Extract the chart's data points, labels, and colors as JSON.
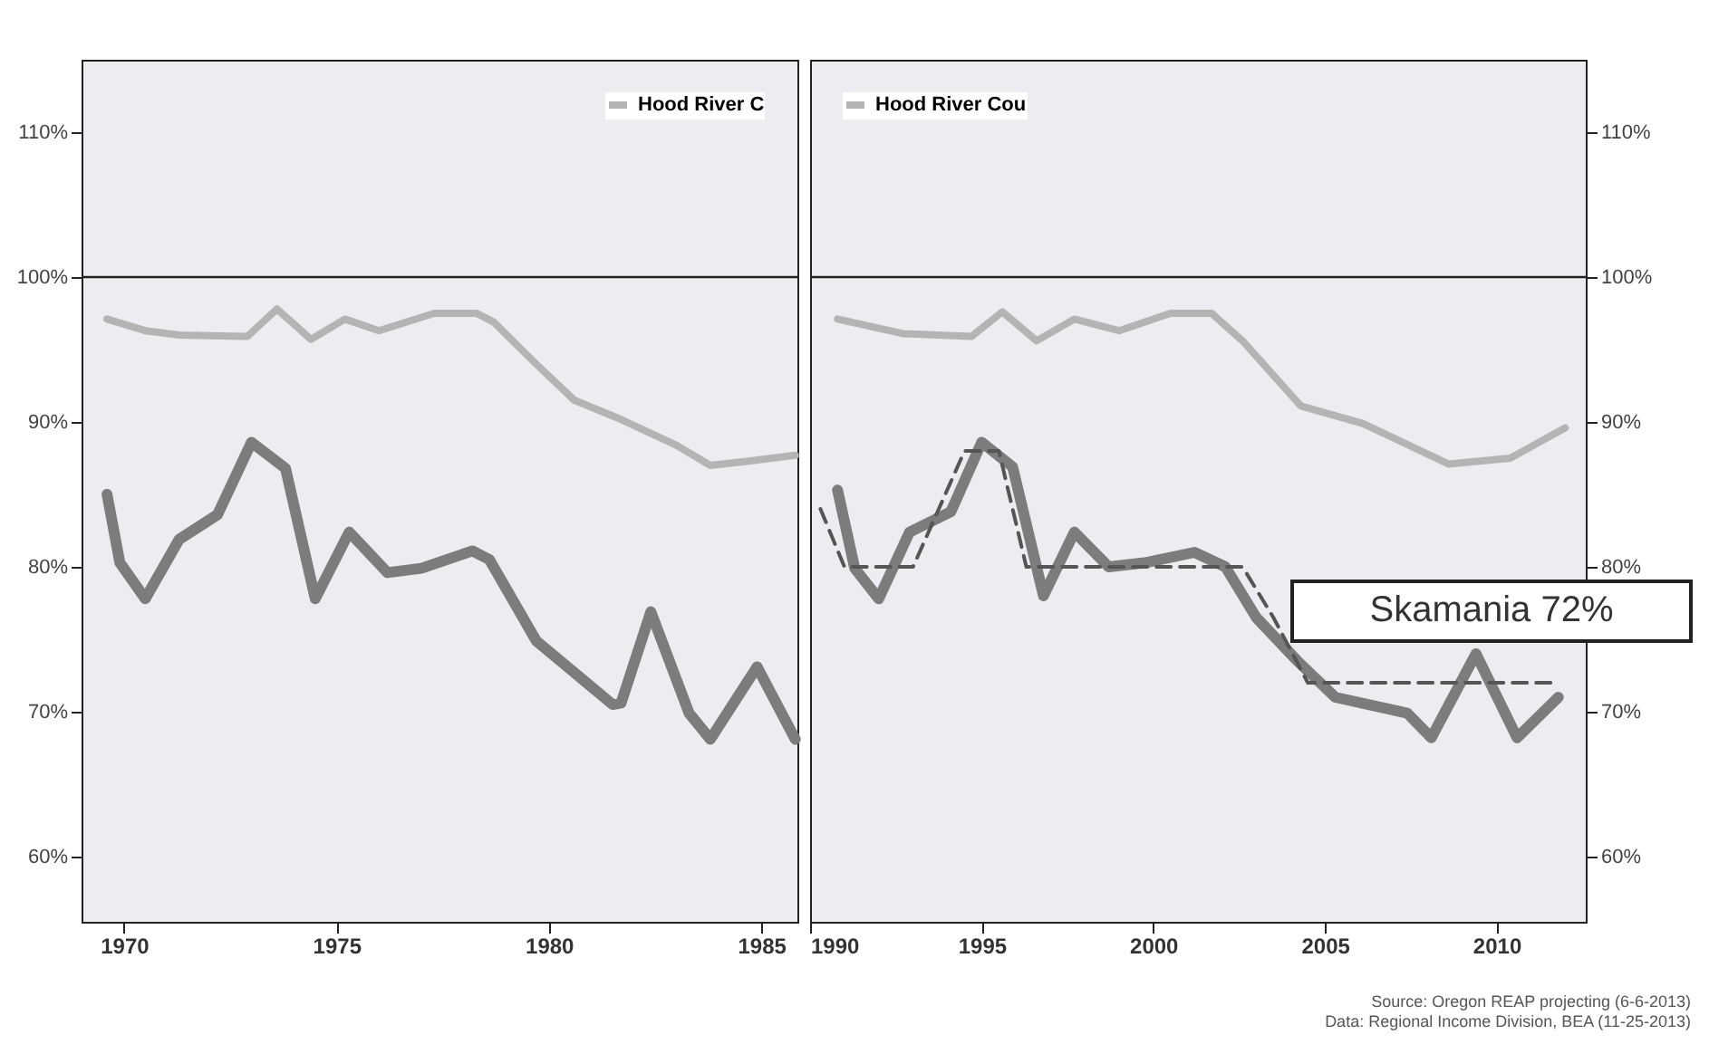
{
  "chart_data": [
    {
      "type": "line",
      "xlim": [
        1969,
        1985.85
      ],
      "xticks": [
        1970,
        1975,
        1980,
        1985
      ],
      "ylim": [
        55.5,
        115
      ],
      "yticks": [
        {
          "value": 60,
          "label": "60%"
        },
        {
          "value": 70,
          "label": "70%"
        },
        {
          "value": 80,
          "label": "80%"
        },
        {
          "value": 90,
          "label": "90%"
        },
        {
          "value": 100,
          "label": "100%"
        },
        {
          "value": 110,
          "label": "110%"
        }
      ],
      "legend": "top right",
      "ref_lines": [
        {
          "axis": "y",
          "value": 100
        }
      ],
      "series": [
        {
          "name": "Hood River C",
          "color": "#b4b4b4",
          "x": [
            1969.6,
            1970.5,
            1971.3,
            1972.9,
            1973.6,
            1974.4,
            1975.2,
            1976.0,
            1977.3,
            1978.3,
            1978.7,
            1979.7,
            1980.6,
            1981.6,
            1983.0,
            1983.8,
            1984.7,
            1985.8
          ],
          "values": [
            97.1,
            96.3,
            96.0,
            95.9,
            97.8,
            95.7,
            97.1,
            96.3,
            97.5,
            97.5,
            96.9,
            94.0,
            91.5,
            90.3,
            88.4,
            87.0,
            87.3,
            87.7
          ]
        },
        {
          "color": "#7c7c7c",
          "x": [
            1969.6,
            1969.9,
            1970.5,
            1971.3,
            1972.2,
            1973.0,
            1973.8,
            1974.5,
            1975.3,
            1976.2,
            1977.0,
            1978.2,
            1978.6,
            1979.7,
            1981.5,
            1981.7,
            1982.4,
            1983.3,
            1983.8,
            1984.9,
            1985.8
          ],
          "values": [
            85.0,
            80.3,
            77.8,
            81.9,
            83.6,
            88.6,
            86.8,
            77.8,
            82.4,
            79.6,
            79.9,
            81.1,
            80.5,
            74.9,
            70.5,
            70.6,
            76.9,
            69.9,
            68.1,
            73.1,
            68.1
          ]
        }
      ]
    },
    {
      "type": "line",
      "xlim": [
        1990,
        2012.6
      ],
      "xticks": [
        1990,
        1995,
        2000,
        2005,
        2010
      ],
      "y2lim": [
        55.5,
        115
      ],
      "y2ticks": [
        {
          "value": 60,
          "label": "60%"
        },
        {
          "value": 70,
          "label": "70%"
        },
        {
          "value": 80,
          "label": "80%"
        },
        {
          "value": 90,
          "label": "90%"
        },
        {
          "value": 100,
          "label": "100%"
        },
        {
          "value": 110,
          "label": "110%"
        }
      ],
      "legend": "top left",
      "ref_lines": [
        {
          "axis": "y2",
          "value": 100
        }
      ],
      "annotations": [
        "Skamania 72%",
        "Source: Oregon REAP projecting (6-6-2013)",
        "Data: Regional Income Division, BEA (11-25-2013)"
      ],
      "series": [
        {
          "name": "Hood River Cou",
          "color": "#b4b4b4",
          "axis": "y2",
          "x": [
            1990.8,
            1992.7,
            1994.7,
            1995.6,
            1996.6,
            1997.7,
            1999.0,
            2000.5,
            2001.7,
            2002.6,
            2004.3,
            2006.1,
            2008.6,
            2010.4,
            2012.0
          ],
          "values": [
            97.1,
            96.1,
            95.9,
            97.6,
            95.6,
            97.1,
            96.3,
            97.5,
            97.5,
            95.6,
            91.1,
            89.9,
            87.1,
            87.5,
            89.6
          ]
        },
        {
          "color": "#7c7c7c",
          "axis": "y2",
          "x": [
            1990.8,
            1991.3,
            1992.0,
            1992.9,
            1994.1,
            1995.0,
            1995.9,
            1996.8,
            1997.7,
            1998.7,
            1999.8,
            2001.2,
            2002.1,
            2003.0,
            2004.2,
            2005.3,
            2007.4,
            2008.1,
            2009.4,
            2010.6,
            2011.8
          ],
          "values": [
            85.3,
            79.9,
            77.8,
            82.4,
            83.8,
            88.6,
            86.9,
            78.0,
            82.4,
            80.0,
            80.3,
            81.0,
            80.0,
            76.5,
            73.5,
            71.0,
            69.9,
            68.2,
            74.0,
            68.2,
            71.0
          ]
        },
        {
          "color": "#555555",
          "axis": "y2",
          "line_style": "dashed",
          "x": [
            1990.3,
            1991.0,
            1993.0,
            1994.5,
            1995.5,
            1996.3,
            2002.6,
            2003.5,
            2004.5,
            2011.6
          ],
          "values": [
            84,
            80,
            80,
            88,
            88,
            80,
            80,
            76.5,
            72,
            72
          ]
        }
      ]
    }
  ]
}
